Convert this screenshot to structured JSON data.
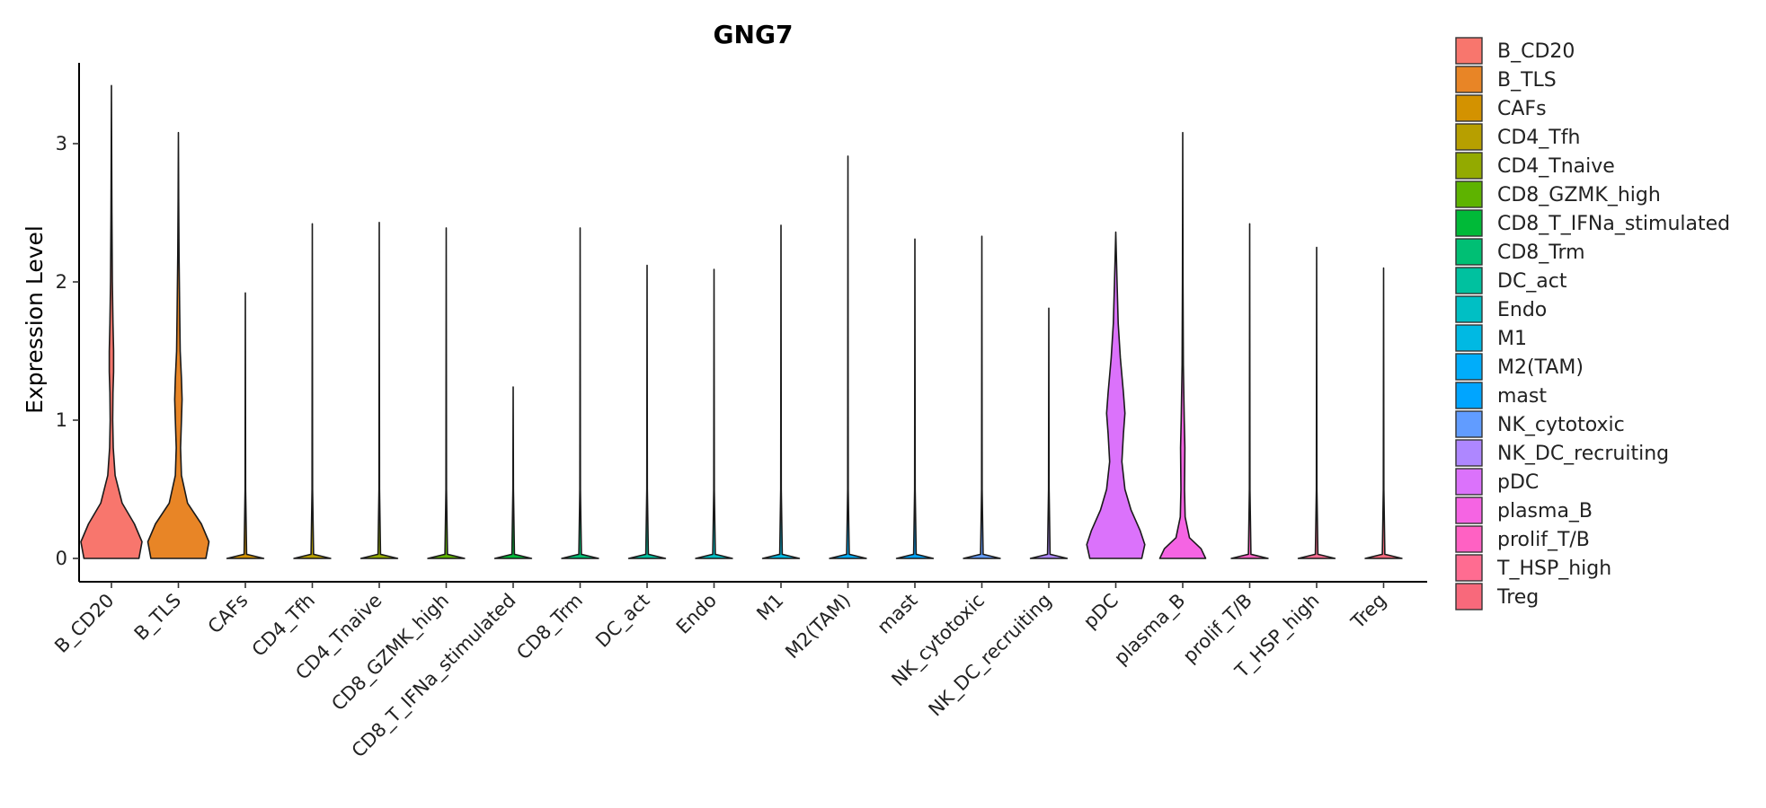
{
  "chart_data": {
    "type": "violin",
    "title": "GNG7",
    "xlabel": "",
    "ylabel": "Expression Level",
    "ylim": [
      -0.17,
      3.6
    ],
    "yticks": [
      0,
      1,
      2,
      3
    ],
    "grid": false,
    "legend_position": "right",
    "categories": [
      "B_CD20",
      "B_TLS",
      "CAFs",
      "CD4_Tfh",
      "CD4_Tnaive",
      "CD8_GZMK_high",
      "CD8_T_IFNa_stimulated",
      "CD8_Trm",
      "DC_act",
      "Endo",
      "M1",
      "M2(TAM)",
      "mast",
      "NK_cytotoxic",
      "NK_DC_recruiting",
      "pDC",
      "plasma_B",
      "prolif_T/B",
      "T_HSP_high",
      "Treg"
    ],
    "colors": [
      "#F8766D",
      "#E88526",
      "#D39200",
      "#B79F00",
      "#93AA00",
      "#5EB300",
      "#00BA38",
      "#00BF74",
      "#00C19F",
      "#00BFC4",
      "#00B9E3",
      "#00ADFA",
      "#00A5FF",
      "#619CFF",
      "#AE87FF",
      "#DB72FB",
      "#F564E3",
      "#FF61C3",
      "#FF6C91",
      "#F8697B"
    ],
    "max_values": [
      3.42,
      3.08,
      1.92,
      2.42,
      2.43,
      2.39,
      1.24,
      2.39,
      2.12,
      2.09,
      2.41,
      2.91,
      2.31,
      2.33,
      1.81,
      2.36,
      3.08,
      2.42,
      2.25,
      2.1
    ],
    "density_profiles": [
      [
        [
          0,
          0.9
        ],
        [
          0.12,
          1.0
        ],
        [
          0.25,
          0.75
        ],
        [
          0.4,
          0.35
        ],
        [
          0.6,
          0.12
        ],
        [
          0.8,
          0.06
        ],
        [
          1.0,
          0.04
        ],
        [
          1.2,
          0.05
        ],
        [
          1.35,
          0.07
        ],
        [
          1.5,
          0.07
        ],
        [
          1.7,
          0.05
        ],
        [
          2.0,
          0.03
        ],
        [
          2.5,
          0.015
        ],
        [
          3.0,
          0.006
        ],
        [
          3.42,
          0.0
        ]
      ],
      [
        [
          0,
          0.9
        ],
        [
          0.12,
          1.0
        ],
        [
          0.25,
          0.75
        ],
        [
          0.4,
          0.3
        ],
        [
          0.6,
          0.1
        ],
        [
          0.8,
          0.07
        ],
        [
          1.0,
          0.1
        ],
        [
          1.15,
          0.12
        ],
        [
          1.3,
          0.1
        ],
        [
          1.5,
          0.06
        ],
        [
          1.8,
          0.04
        ],
        [
          2.2,
          0.02
        ],
        [
          2.6,
          0.01
        ],
        [
          3.08,
          0.0
        ]
      ],
      [
        [
          0,
          0.6
        ],
        [
          0.03,
          0.04
        ],
        [
          0.5,
          0.01
        ],
        [
          1.92,
          0.0
        ]
      ],
      [
        [
          0,
          0.6
        ],
        [
          0.03,
          0.04
        ],
        [
          0.5,
          0.01
        ],
        [
          2.42,
          0.0
        ]
      ],
      [
        [
          0,
          0.6
        ],
        [
          0.03,
          0.04
        ],
        [
          0.5,
          0.01
        ],
        [
          2.43,
          0.0
        ]
      ],
      [
        [
          0,
          0.6
        ],
        [
          0.03,
          0.04
        ],
        [
          0.5,
          0.01
        ],
        [
          2.39,
          0.0
        ]
      ],
      [
        [
          0,
          0.6
        ],
        [
          0.03,
          0.04
        ],
        [
          0.5,
          0.01
        ],
        [
          1.24,
          0.0
        ]
      ],
      [
        [
          0,
          0.6
        ],
        [
          0.03,
          0.04
        ],
        [
          0.5,
          0.01
        ],
        [
          2.39,
          0.0
        ]
      ],
      [
        [
          0,
          0.6
        ],
        [
          0.03,
          0.04
        ],
        [
          0.5,
          0.01
        ],
        [
          2.12,
          0.0
        ]
      ],
      [
        [
          0,
          0.6
        ],
        [
          0.03,
          0.04
        ],
        [
          0.5,
          0.01
        ],
        [
          2.09,
          0.0
        ]
      ],
      [
        [
          0,
          0.6
        ],
        [
          0.03,
          0.04
        ],
        [
          0.5,
          0.01
        ],
        [
          2.41,
          0.0
        ]
      ],
      [
        [
          0,
          0.6
        ],
        [
          0.03,
          0.04
        ],
        [
          0.5,
          0.01
        ],
        [
          2.91,
          0.0
        ]
      ],
      [
        [
          0,
          0.6
        ],
        [
          0.03,
          0.04
        ],
        [
          0.5,
          0.01
        ],
        [
          2.31,
          0.0
        ]
      ],
      [
        [
          0,
          0.6
        ],
        [
          0.03,
          0.04
        ],
        [
          0.5,
          0.01
        ],
        [
          2.33,
          0.0
        ]
      ],
      [
        [
          0,
          0.6
        ],
        [
          0.03,
          0.04
        ],
        [
          0.5,
          0.01
        ],
        [
          1.81,
          0.0
        ]
      ],
      [
        [
          0,
          0.85
        ],
        [
          0.1,
          0.95
        ],
        [
          0.2,
          0.8
        ],
        [
          0.35,
          0.5
        ],
        [
          0.5,
          0.3
        ],
        [
          0.7,
          0.2
        ],
        [
          0.9,
          0.25
        ],
        [
          1.05,
          0.3
        ],
        [
          1.2,
          0.25
        ],
        [
          1.45,
          0.15
        ],
        [
          1.7,
          0.08
        ],
        [
          2.0,
          0.04
        ],
        [
          2.36,
          0.0
        ]
      ],
      [
        [
          0,
          0.75
        ],
        [
          0.07,
          0.6
        ],
        [
          0.15,
          0.22
        ],
        [
          0.3,
          0.08
        ],
        [
          0.5,
          0.06
        ],
        [
          0.8,
          0.07
        ],
        [
          1.0,
          0.05
        ],
        [
          1.4,
          0.02
        ],
        [
          2.0,
          0.01
        ],
        [
          3.08,
          0.0
        ]
      ],
      [
        [
          0,
          0.6
        ],
        [
          0.03,
          0.04
        ],
        [
          0.5,
          0.01
        ],
        [
          2.42,
          0.0
        ]
      ],
      [
        [
          0,
          0.6
        ],
        [
          0.03,
          0.04
        ],
        [
          0.5,
          0.01
        ],
        [
          2.25,
          0.0
        ]
      ],
      [
        [
          0,
          0.6
        ],
        [
          0.03,
          0.04
        ],
        [
          0.5,
          0.01
        ],
        [
          2.1,
          0.0
        ]
      ]
    ]
  }
}
